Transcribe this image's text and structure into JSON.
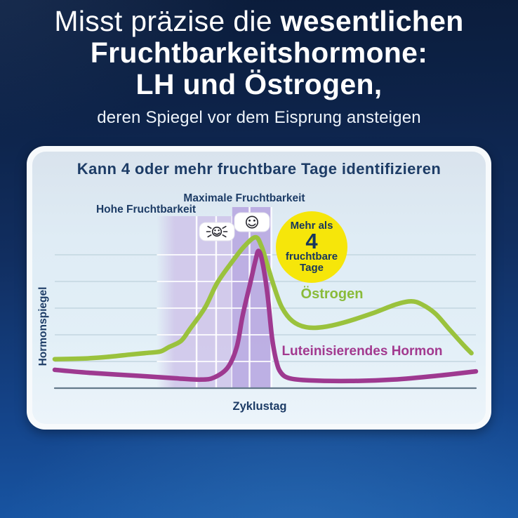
{
  "header": {
    "line1_regular": "Misst präzise die ",
    "line1_bold": "wesentlichen",
    "line2": "Fruchtbarkeitshormone:",
    "line3": "LH und Östrogen,",
    "subtitle": "deren Spiegel vor dem Eisprung ansteigen"
  },
  "card": {
    "title": "Kann 4 oder mehr fruchtbare Tage identifizieren",
    "labels": {
      "high_fertility": "Hohe Fruchtbarkeit",
      "peak_fertility": "Maximale Fruchtbarkeit",
      "estrogen": "Östrogen",
      "lh": "Luteinisierendes Hormon",
      "y_axis": "Hormonspiegel",
      "x_axis": "Zyklustag"
    },
    "badge": {
      "line1": "Mehr als",
      "number": "4",
      "line2": "fruchtbare",
      "line3": "Tage"
    },
    "icons": [
      "flashing-smiley-icon",
      "static-smiley-icon"
    ]
  },
  "colors": {
    "background_top": "#0b1c3a",
    "background_bottom": "#1857a6",
    "heading_text": "#ffffff",
    "card_border": "#f7fafc",
    "card_bg_top": "#d9e3ed",
    "card_bg_bottom": "#ecf4fa",
    "navy_text": "#1d3c66",
    "estrogen_green": "#9ac23d",
    "lh_magenta": "#9e3990",
    "high_fertility_band": "#cfc5e9",
    "peak_fertility_band": "#b7a6e0",
    "annotation_yellow": "#f6e60a",
    "gridline": "#c3d6e0",
    "axis_line": "#64798a"
  },
  "chart_data": {
    "type": "line",
    "title": "Kann 4 oder mehr fruchtbare Tage identifizieren",
    "xlabel": "Zyklustag",
    "ylabel": "Hormonspiegel",
    "x_range": [
      0,
      28
    ],
    "y_range": [
      0,
      100
    ],
    "grid": "horizontal gridlines only, no tick labels on either axis",
    "legend_position": "inline labels beside each curve",
    "series": [
      {
        "name": "Östrogen",
        "color": "#9ac23d",
        "points": [
          [
            0,
            19
          ],
          [
            2,
            19.5
          ],
          [
            3.5,
            20.5
          ],
          [
            5,
            22
          ],
          [
            6,
            23
          ],
          [
            7,
            24
          ],
          [
            7.6,
            27
          ],
          [
            8.4,
            31
          ],
          [
            9,
            39
          ],
          [
            10,
            53
          ],
          [
            10.8,
            69
          ],
          [
            11.8,
            83
          ],
          [
            12.6,
            93
          ],
          [
            13.35,
            99
          ],
          [
            13.75,
            93
          ],
          [
            14.1,
            82
          ],
          [
            14.6,
            66
          ],
          [
            15.1,
            53
          ],
          [
            15.8,
            44
          ],
          [
            16.7,
            40
          ],
          [
            17.8,
            40
          ],
          [
            19.2,
            43
          ],
          [
            21.1,
            49
          ],
          [
            22.7,
            55
          ],
          [
            23.7,
            57
          ],
          [
            24.4,
            55
          ],
          [
            25.3,
            49
          ],
          [
            26.2,
            39
          ],
          [
            27.2,
            28
          ],
          [
            27.7,
            23
          ]
        ]
      },
      {
        "name": "Luteinisierendes Hormon",
        "color": "#9e3990",
        "points": [
          [
            0,
            12
          ],
          [
            2.4,
            10
          ],
          [
            5.7,
            8
          ],
          [
            8,
            6.5
          ],
          [
            9.7,
            5.6
          ],
          [
            10.6,
            7
          ],
          [
            11.5,
            13.5
          ],
          [
            12.1,
            27
          ],
          [
            12.5,
            48
          ],
          [
            13,
            69
          ],
          [
            13.35,
            84
          ],
          [
            13.55,
            90
          ],
          [
            13.8,
            83
          ],
          [
            14.15,
            61
          ],
          [
            14.45,
            33
          ],
          [
            14.75,
            17
          ],
          [
            15.05,
            10
          ],
          [
            15.6,
            6.5
          ],
          [
            16.9,
            5.1
          ],
          [
            19.7,
            4.7
          ],
          [
            22.5,
            5.6
          ],
          [
            25.3,
            8
          ],
          [
            28,
            11
          ]
        ]
      }
    ],
    "regions": [
      {
        "name": "Hohe Fruchtbarkeit",
        "x_start": 8.0,
        "x_end": 11.8,
        "color": "#cfc5e9",
        "fade_left": true,
        "dividers": [
          9.43,
          10.73
        ],
        "icon": "flashing-smiley"
      },
      {
        "name": "Maximale Fruchtbarkeit",
        "x_start": 11.8,
        "x_end": 14.4,
        "color": "#b7a6e0",
        "fade_left": false,
        "dividers": [
          12.95
        ],
        "icon": "static-smiley"
      }
    ],
    "annotation": {
      "text": "Mehr als 4 fruchtbare Tage",
      "shape": "yellow-circle"
    }
  }
}
